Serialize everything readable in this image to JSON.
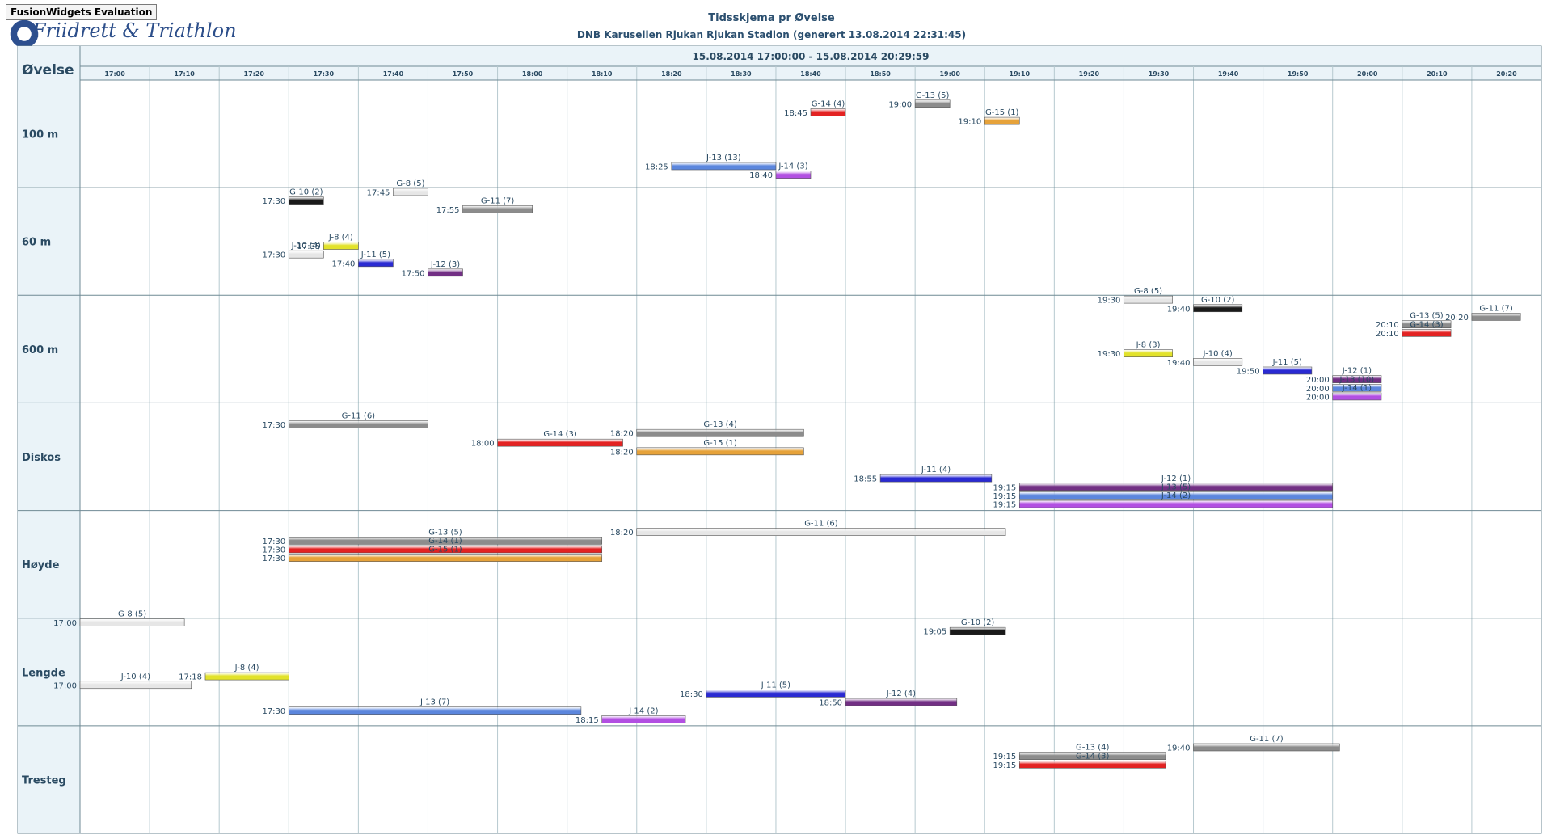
{
  "watermark": "FusionWidgets Evaluation",
  "logo_text": "Friidrett & Triathlon",
  "chart_data": {
    "type": "gantt",
    "title": "Tidsskjema pr Øvelse",
    "subtitle": "DNB Karusellen Rjukan Rjukan Stadion (generert 13.08.2014 22:31:45)",
    "date_range_label": "15.08.2014 17:00:00 - 15.08.2014 20:29:59",
    "process_header": "Øvelse",
    "time_start": "17:00",
    "time_end": "20:30",
    "time_ticks": [
      "17:00",
      "17:10",
      "17:20",
      "17:30",
      "17:40",
      "17:50",
      "18:00",
      "18:10",
      "18:20",
      "18:30",
      "18:40",
      "18:50",
      "19:00",
      "19:10",
      "19:20",
      "19:30",
      "19:40",
      "19:50",
      "20:00",
      "20:10",
      "20:20"
    ],
    "rows": [
      "100 m",
      "60 m",
      "600 m",
      "Diskos",
      "Høyde",
      "Lengde",
      "Tresteg"
    ],
    "colors": {
      "grey": "#8c8c8c",
      "black": "#1a1a1a",
      "white": "#e6e6e6",
      "red": "#e32222",
      "orange": "#e6a23a",
      "yellow": "#e2e22a",
      "blue": "#2a2ad2",
      "purple": "#722f84",
      "lightblue": "#5b86dd",
      "violet": "#b24fe2",
      "grid": "#b6c9cf",
      "border": "#6f8a94",
      "header_bg": "#eaf3f8"
    },
    "tasks": [
      {
        "row": "100 m",
        "label": "G-14 (4)",
        "start": "18:45",
        "end": "18:50",
        "color": "red",
        "slot": 0.3
      },
      {
        "row": "100 m",
        "label": "G-13 (5)",
        "start": "19:00",
        "end": "19:05",
        "color": "grey",
        "slot": 0.22
      },
      {
        "row": "100 m",
        "label": "G-15 (1)",
        "start": "19:10",
        "end": "19:15",
        "color": "orange",
        "slot": 0.38
      },
      {
        "row": "100 m",
        "label": "J-13 (13)",
        "start": "18:25",
        "end": "18:40",
        "color": "lightblue",
        "slot": 0.8
      },
      {
        "row": "100 m",
        "label": "J-14 (3)",
        "start": "18:40",
        "end": "18:45",
        "color": "violet",
        "slot": 0.88
      },
      {
        "row": "60 m",
        "label": "G-10 (2)",
        "start": "17:30",
        "end": "17:35",
        "color": "black",
        "slot": 0.12
      },
      {
        "row": "60 m",
        "label": "G-8 (5)",
        "start": "17:45",
        "end": "17:50",
        "color": "white",
        "slot": 0.04
      },
      {
        "row": "60 m",
        "label": "G-11 (7)",
        "start": "17:55",
        "end": "18:05",
        "color": "grey",
        "slot": 0.2
      },
      {
        "row": "60 m",
        "label": "J-8 (4)",
        "start": "17:35",
        "end": "17:40",
        "color": "yellow",
        "slot": 0.54
      },
      {
        "row": "60 m",
        "label": "J-10 (4)",
        "start": "17:30",
        "end": "17:35",
        "color": "white",
        "slot": 0.62
      },
      {
        "row": "60 m",
        "label": "J-11 (5)",
        "start": "17:40",
        "end": "17:45",
        "color": "blue",
        "slot": 0.7
      },
      {
        "row": "60 m",
        "label": "J-12 (3)",
        "start": "17:50",
        "end": "17:55",
        "color": "purple",
        "slot": 0.79
      },
      {
        "row": "600 m",
        "label": "G-8 (5)",
        "start": "19:30",
        "end": "19:37",
        "color": "white",
        "slot": 0.04
      },
      {
        "row": "600 m",
        "label": "G-10 (2)",
        "start": "19:40",
        "end": "19:47",
        "color": "black",
        "slot": 0.12
      },
      {
        "row": "600 m",
        "label": "G-11 (7)",
        "start": "20:20",
        "end": "20:27",
        "color": "grey",
        "slot": 0.2
      },
      {
        "row": "600 m",
        "label": "G-13 (5)",
        "start": "20:10",
        "end": "20:17",
        "color": "grey",
        "slot": 0.27
      },
      {
        "row": "600 m",
        "label": "G-14 (3)",
        "start": "20:10",
        "end": "20:17",
        "color": "red",
        "slot": 0.35
      },
      {
        "row": "600 m",
        "label": "J-8 (3)",
        "start": "19:30",
        "end": "19:37",
        "color": "yellow",
        "slot": 0.54
      },
      {
        "row": "600 m",
        "label": "J-10 (4)",
        "start": "19:40",
        "end": "19:47",
        "color": "white",
        "slot": 0.62
      },
      {
        "row": "600 m",
        "label": "J-11 (5)",
        "start": "19:50",
        "end": "19:57",
        "color": "blue",
        "slot": 0.7
      },
      {
        "row": "600 m",
        "label": "J-12 (1)",
        "start": "20:00",
        "end": "20:07",
        "color": "purple",
        "slot": 0.78
      },
      {
        "row": "600 m",
        "label": "J-13 (10)",
        "start": "20:00",
        "end": "20:07",
        "color": "lightblue",
        "slot": 0.86
      },
      {
        "row": "600 m",
        "label": "J-14 (1)",
        "start": "20:00",
        "end": "20:07",
        "color": "violet",
        "slot": 0.94
      },
      {
        "row": "Diskos",
        "label": "G-11 (6)",
        "start": "17:30",
        "end": "17:50",
        "color": "grey",
        "slot": 0.2
      },
      {
        "row": "Diskos",
        "label": "G-14 (3)",
        "start": "18:00",
        "end": "18:18",
        "color": "red",
        "slot": 0.37
      },
      {
        "row": "Diskos",
        "label": "G-13 (4)",
        "start": "18:20",
        "end": "18:44",
        "color": "grey",
        "slot": 0.28
      },
      {
        "row": "Diskos",
        "label": "G-15 (1)",
        "start": "18:20",
        "end": "18:44",
        "color": "orange",
        "slot": 0.45
      },
      {
        "row": "Diskos",
        "label": "J-11 (4)",
        "start": "18:55",
        "end": "19:11",
        "color": "blue",
        "slot": 0.7
      },
      {
        "row": "Diskos",
        "label": "J-12 (1)",
        "start": "19:15",
        "end": "20:00",
        "color": "purple",
        "slot": 0.78
      },
      {
        "row": "Diskos",
        "label": "J-13 (5)",
        "start": "19:15",
        "end": "20:00",
        "color": "lightblue",
        "slot": 0.86
      },
      {
        "row": "Diskos",
        "label": "J-14 (2)",
        "start": "19:15",
        "end": "20:00",
        "color": "violet",
        "slot": 0.94
      },
      {
        "row": "Høyde",
        "label": "G-11 (6)",
        "start": "18:20",
        "end": "19:13",
        "color": "white",
        "slot": 0.2
      },
      {
        "row": "Høyde",
        "label": "G-13 (5)",
        "start": "17:30",
        "end": "18:15",
        "color": "grey",
        "slot": 0.28
      },
      {
        "row": "Høyde",
        "label": "G-14 (1)",
        "start": "17:30",
        "end": "18:15",
        "color": "red",
        "slot": 0.36
      },
      {
        "row": "Høyde",
        "label": "G-15 (1)",
        "start": "17:30",
        "end": "18:15",
        "color": "orange",
        "slot": 0.44
      },
      {
        "row": "Lengde",
        "label": "G-8 (5)",
        "start": "17:00",
        "end": "17:15",
        "color": "white",
        "slot": 0.04
      },
      {
        "row": "Lengde",
        "label": "G-10 (2)",
        "start": "19:05",
        "end": "19:13",
        "color": "black",
        "slot": 0.12
      },
      {
        "row": "Lengde",
        "label": "J-8 (4)",
        "start": "17:18",
        "end": "17:30",
        "color": "yellow",
        "slot": 0.54
      },
      {
        "row": "Lengde",
        "label": "J-10 (4)",
        "start": "17:00",
        "end": "17:16",
        "color": "white",
        "slot": 0.62
      },
      {
        "row": "Lengde",
        "label": "J-11 (5)",
        "start": "18:30",
        "end": "18:50",
        "color": "blue",
        "slot": 0.7
      },
      {
        "row": "Lengde",
        "label": "J-12 (4)",
        "start": "18:50",
        "end": "19:06",
        "color": "purple",
        "slot": 0.78
      },
      {
        "row": "Lengde",
        "label": "J-13 (7)",
        "start": "17:30",
        "end": "18:12",
        "color": "lightblue",
        "slot": 0.86
      },
      {
        "row": "Lengde",
        "label": "J-14 (2)",
        "start": "18:15",
        "end": "18:27",
        "color": "violet",
        "slot": 0.94
      },
      {
        "row": "Tresteg",
        "label": "G-11 (7)",
        "start": "19:40",
        "end": "20:01",
        "color": "grey",
        "slot": 0.2
      },
      {
        "row": "Tresteg",
        "label": "G-13 (4)",
        "start": "19:15",
        "end": "19:36",
        "color": "grey",
        "slot": 0.28
      },
      {
        "row": "Tresteg",
        "label": "G-14 (3)",
        "start": "19:15",
        "end": "19:36",
        "color": "red",
        "slot": 0.36
      }
    ]
  }
}
